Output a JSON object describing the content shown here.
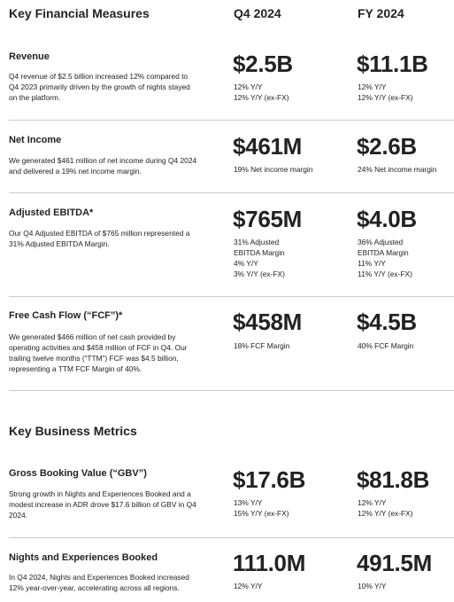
{
  "financial": {
    "title": "Key Financial Measures",
    "col_q4": "Q4 2024",
    "col_fy": "FY 2024",
    "rows": [
      {
        "title": "Revenue",
        "desc": "Q4 revenue of $2.5 billion increased 12% compared to Q4 2023 primarily driven by the growth of nights stayed on the platform.",
        "q4_value": "$2.5B",
        "q4_notes": [
          "12% Y/Y",
          "12% Y/Y (ex-FX)"
        ],
        "fy_value": "$11.1B",
        "fy_notes": [
          "12% Y/Y",
          "12% Y/Y (ex-FX)"
        ]
      },
      {
        "title": "Net Income",
        "desc": "We generated $461 million of net income during Q4 2024 and delivered a 19% net income margin.",
        "q4_value": "$461M",
        "q4_notes": [
          "19% Net income margin"
        ],
        "fy_value": "$2.6B",
        "fy_notes": [
          "24% Net income margin"
        ]
      },
      {
        "title": "Adjusted EBITDA*",
        "desc": "Our Q4 Adjusted EBITDA of $765 million represented a 31% Adjusted EBITDA Margin.",
        "q4_value": "$765M",
        "q4_notes": [
          "31% Adjusted",
          "EBITDA Margin",
          "4% Y/Y",
          "3% Y/Y (ex-FX)"
        ],
        "fy_value": "$4.0B",
        "fy_notes": [
          "36% Adjusted",
          "EBITDA Margin",
          "11% Y/Y",
          "11% Y/Y (ex-FX)"
        ]
      },
      {
        "title": "Free Cash Flow (“FCF”)*",
        "desc": "We generated $466 million of net cash provided by operating activities and $458 million of FCF in Q4. Our trailing twelve months (“TTM”) FCF was $4.5 billion, representing a TTM FCF Margin of 40%.",
        "q4_value": "$458M",
        "q4_notes": [
          "18% FCF Margin"
        ],
        "fy_value": "$4.5B",
        "fy_notes": [
          "40% FCF Margin"
        ]
      }
    ]
  },
  "business": {
    "title": "Key Business Metrics",
    "rows": [
      {
        "title": "Gross Booking Value (“GBV”)",
        "desc": "Strong growth in Nights and Experiences Booked and a modest increase in ADR drove $17.6 billion of GBV in Q4 2024.",
        "q4_value": "$17.6B",
        "q4_notes": [
          "13% Y/Y",
          "15% Y/Y (ex-FX)"
        ],
        "fy_value": "$81.8B",
        "fy_notes": [
          "12% Y/Y",
          "12% Y/Y (ex-FX)"
        ]
      },
      {
        "title": "Nights and Experiences Booked",
        "desc": "In Q4 2024, Nights and Experiences Booked increased 12% year-over-year, accelerating across all regions.",
        "q4_value": "111.0M",
        "q4_notes": [
          "12% Y/Y"
        ],
        "fy_value": "491.5M",
        "fy_notes": [
          "10% Y/Y"
        ]
      }
    ]
  }
}
